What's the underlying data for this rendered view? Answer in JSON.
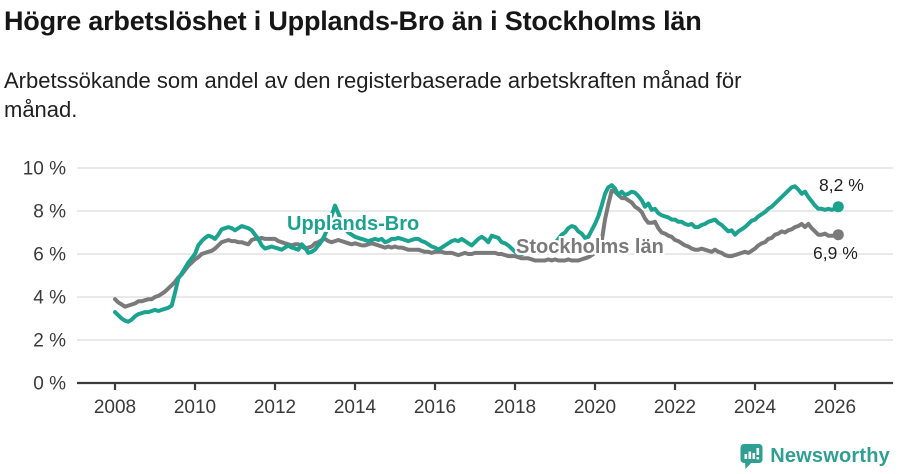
{
  "header": {
    "title": "Högre arbetslöshet i Upplands-Bro än i Stockholms län",
    "subtitle": "Arbetssökande som andel av den registerbaserade arbetskraften månad för\nmånad."
  },
  "theme": {
    "grid_color": "#e2e2e2",
    "axis_color": "#3c3c3c",
    "axis_text_color": "#3a3a3a",
    "value_label_color": "#1f1f1f",
    "background": "#ffffff"
  },
  "footer": {
    "brand": "Newsworthy",
    "brand_color": "#2f9e93",
    "logo_icon": "bar-chart-speech-bubble"
  },
  "chart_data": {
    "type": "line",
    "title": "Högre arbetslöshet i Upplands-Bro än i Stockholms län",
    "subtitle": "Arbetssökande som andel av den registerbaserade arbetskraften månad för månad.",
    "frequency": "monthly",
    "x_start": {
      "year": 2008,
      "month": 1
    },
    "x_end": {
      "year": 2026,
      "month": 2
    },
    "grid": true,
    "unit": "%",
    "x_axis": {
      "tick_labels": [
        "2008",
        "2010",
        "2012",
        "2014",
        "2016",
        "2018",
        "2020",
        "2022",
        "2024",
        "2026"
      ],
      "years_per_tick": 2
    },
    "y_axis": {
      "tick_labels": [
        "10 %",
        "8 %",
        "6 %",
        "4 %",
        "2 %",
        "0 %"
      ],
      "tick_values": [
        10,
        8,
        6,
        4,
        2,
        0
      ],
      "range": [
        0,
        10.5
      ]
    },
    "series": [
      {
        "name": "Upplands-Bro",
        "color": "#1ca38f",
        "end_label": "8,2 %",
        "end_value": 8.2,
        "values": [
          3.3,
          3.15,
          3.0,
          2.9,
          2.85,
          2.95,
          3.1,
          3.2,
          3.25,
          3.3,
          3.3,
          3.35,
          3.4,
          3.35,
          3.4,
          3.45,
          3.5,
          3.6,
          4.2,
          4.85,
          5.1,
          5.35,
          5.6,
          5.8,
          6.0,
          6.4,
          6.6,
          6.75,
          6.85,
          6.8,
          6.7,
          6.9,
          7.15,
          7.2,
          7.25,
          7.2,
          7.1,
          7.2,
          7.3,
          7.25,
          7.2,
          7.1,
          6.9,
          6.7,
          6.4,
          6.25,
          6.3,
          6.35,
          6.3,
          6.25,
          6.2,
          6.3,
          6.4,
          6.3,
          6.25,
          6.2,
          6.45,
          6.3,
          6.05,
          6.1,
          6.2,
          6.4,
          6.6,
          6.9,
          7.3,
          7.8,
          8.25,
          7.9,
          7.5,
          7.2,
          7.0,
          6.9,
          6.8,
          6.75,
          6.7,
          6.65,
          6.6,
          6.65,
          6.7,
          6.65,
          6.7,
          6.55,
          6.6,
          6.7,
          6.7,
          6.75,
          6.7,
          6.65,
          6.6,
          6.65,
          6.7,
          6.7,
          6.6,
          6.55,
          6.45,
          6.35,
          6.3,
          6.2,
          6.3,
          6.4,
          6.5,
          6.6,
          6.65,
          6.6,
          6.7,
          6.6,
          6.5,
          6.4,
          6.55,
          6.7,
          6.8,
          6.7,
          6.55,
          6.85,
          6.8,
          6.75,
          6.55,
          6.5,
          6.4,
          6.25,
          6.1,
          6.05,
          6.0,
          6.05,
          6.1,
          6.05,
          6.1,
          6.15,
          6.1,
          6.15,
          6.2,
          6.3,
          6.5,
          6.7,
          6.9,
          7.0,
          7.2,
          7.3,
          7.25,
          7.05,
          6.95,
          6.75,
          6.8,
          7.1,
          7.4,
          7.75,
          8.25,
          8.8,
          9.1,
          9.2,
          9.05,
          8.75,
          8.9,
          8.75,
          8.8,
          8.9,
          8.85,
          8.7,
          8.5,
          8.2,
          8.35,
          8.05,
          8.1,
          7.9,
          7.8,
          7.75,
          7.7,
          7.6,
          7.6,
          7.5,
          7.5,
          7.4,
          7.35,
          7.4,
          7.25,
          7.25,
          7.35,
          7.4,
          7.5,
          7.55,
          7.6,
          7.45,
          7.35,
          7.2,
          7.05,
          7.1,
          6.9,
          7.05,
          7.15,
          7.25,
          7.4,
          7.55,
          7.6,
          7.75,
          7.85,
          7.95,
          8.1,
          8.2,
          8.35,
          8.5,
          8.65,
          8.8,
          8.95,
          9.1,
          9.15,
          9.0,
          8.8,
          8.9,
          8.65,
          8.45,
          8.25,
          8.1,
          8.1,
          8.05,
          8.1,
          8.05,
          8.1,
          8.2
        ]
      },
      {
        "name": "Stockholms län",
        "color": "#7a7a7a",
        "end_label": "6,9 %",
        "end_value": 6.9,
        "values": [
          3.9,
          3.75,
          3.65,
          3.55,
          3.6,
          3.65,
          3.7,
          3.8,
          3.8,
          3.85,
          3.9,
          3.9,
          4.0,
          4.05,
          4.15,
          4.25,
          4.4,
          4.55,
          4.7,
          4.9,
          5.05,
          5.25,
          5.45,
          5.6,
          5.75,
          5.85,
          6.0,
          6.05,
          6.1,
          6.15,
          6.25,
          6.4,
          6.55,
          6.6,
          6.65,
          6.6,
          6.6,
          6.55,
          6.55,
          6.5,
          6.45,
          6.65,
          6.7,
          6.7,
          6.75,
          6.7,
          6.7,
          6.7,
          6.7,
          6.6,
          6.55,
          6.5,
          6.45,
          6.4,
          6.45,
          6.45,
          6.35,
          6.25,
          6.3,
          6.35,
          6.5,
          6.55,
          6.65,
          6.7,
          6.6,
          6.55,
          6.6,
          6.65,
          6.6,
          6.55,
          6.5,
          6.45,
          6.5,
          6.45,
          6.4,
          6.4,
          6.45,
          6.5,
          6.45,
          6.4,
          6.35,
          6.3,
          6.35,
          6.3,
          6.35,
          6.3,
          6.3,
          6.25,
          6.2,
          6.2,
          6.2,
          6.2,
          6.15,
          6.1,
          6.1,
          6.05,
          6.1,
          6.1,
          6.1,
          6.05,
          6.05,
          6.05,
          6.0,
          5.95,
          6.0,
          6.05,
          6.0,
          6.0,
          6.05,
          6.05,
          6.05,
          6.05,
          6.05,
          6.05,
          6.05,
          6.0,
          6.0,
          5.95,
          5.9,
          5.9,
          5.9,
          5.85,
          5.8,
          5.8,
          5.8,
          5.75,
          5.7,
          5.7,
          5.7,
          5.7,
          5.75,
          5.7,
          5.75,
          5.7,
          5.7,
          5.7,
          5.75,
          5.7,
          5.7,
          5.7,
          5.75,
          5.8,
          5.85,
          5.95,
          6.05,
          6.1,
          6.6,
          7.6,
          8.3,
          8.95,
          8.9,
          8.75,
          8.6,
          8.6,
          8.5,
          8.4,
          8.2,
          8.1,
          7.95,
          7.65,
          7.45,
          7.45,
          7.5,
          7.2,
          7.0,
          6.95,
          6.85,
          6.8,
          6.65,
          6.6,
          6.5,
          6.4,
          6.35,
          6.25,
          6.2,
          6.2,
          6.25,
          6.2,
          6.15,
          6.1,
          6.2,
          6.1,
          6.05,
          5.95,
          5.9,
          5.9,
          5.95,
          6.0,
          6.05,
          6.1,
          6.05,
          6.15,
          6.25,
          6.4,
          6.5,
          6.55,
          6.7,
          6.75,
          6.9,
          6.95,
          7.05,
          7.0,
          7.1,
          7.15,
          7.25,
          7.3,
          7.4,
          7.25,
          7.4,
          7.2,
          7.05,
          6.9,
          6.9,
          6.95,
          6.85,
          6.85,
          6.85,
          6.9
        ]
      }
    ]
  }
}
